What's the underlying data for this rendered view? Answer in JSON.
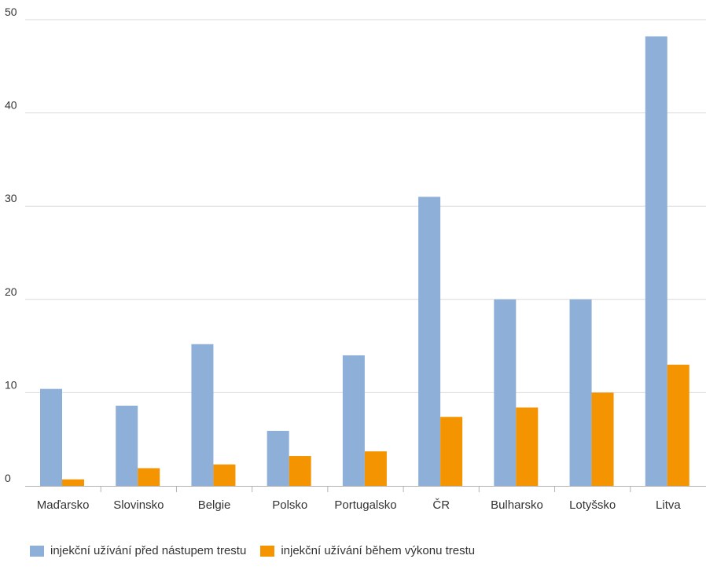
{
  "chart_data": {
    "type": "bar",
    "categories": [
      "Maďarsko",
      "Slovinsko",
      "Belgie",
      "Polsko",
      "Portugalsko",
      "ČR",
      "Bulharsko",
      "Lotyšsko",
      "Litva"
    ],
    "series": [
      {
        "name": "injekční užívání před nástupem trestu",
        "color": "#8eafd7",
        "values": [
          10.4,
          8.6,
          15.2,
          5.9,
          14.0,
          31.0,
          20.0,
          20.0,
          48.2
        ]
      },
      {
        "name": "injekční užívání během výkonu trestu",
        "color": "#f39400",
        "values": [
          0.7,
          1.9,
          2.3,
          3.2,
          3.7,
          7.4,
          8.4,
          10.0,
          13.0
        ]
      }
    ],
    "yticks": [
      "0",
      "10",
      "20",
      "30",
      "40",
      "50"
    ],
    "ylim": [
      0,
      50
    ],
    "grid": true,
    "legend_position": "bottom-left",
    "colors": {
      "grid": "#d9d9d9",
      "axis": "#b3b3b3",
      "text": "#333333"
    }
  }
}
